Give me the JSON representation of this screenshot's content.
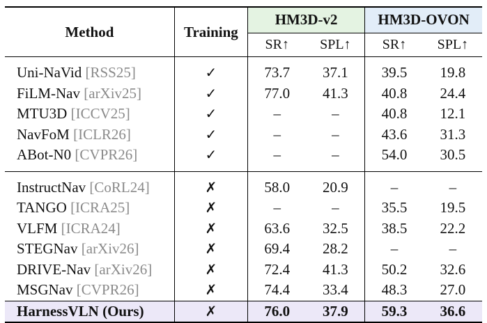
{
  "table": {
    "header": {
      "method": "Method",
      "training": "Training",
      "groups": [
        "HM3D-v2",
        "HM3D-OVON"
      ],
      "metrics": [
        "SR↑",
        "SPL↑",
        "SR↑",
        "SPL↑"
      ]
    },
    "training_rows": [
      {
        "name": "Uni-NaVid",
        "venue": "[RSS25]",
        "training": "✓",
        "v2_sr": "73.7",
        "v2_spl": "37.1",
        "ovon_sr": "39.5",
        "ovon_spl": "19.8"
      },
      {
        "name": "FiLM-Nav",
        "venue": "[arXiv25]",
        "training": "✓",
        "v2_sr": "77.0",
        "v2_spl": "41.3",
        "ovon_sr": "40.8",
        "ovon_spl": "24.4"
      },
      {
        "name": "MTU3D",
        "venue": "[ICCV25]",
        "training": "✓",
        "v2_sr": "–",
        "v2_spl": "–",
        "ovon_sr": "40.8",
        "ovon_spl": "12.1"
      },
      {
        "name": "NavFoM",
        "venue": "[ICLR26]",
        "training": "✓",
        "v2_sr": "–",
        "v2_spl": "–",
        "ovon_sr": "43.6",
        "ovon_spl": "31.3"
      },
      {
        "name": "ABot-N0",
        "venue": "[CVPR26]",
        "training": "✓",
        "v2_sr": "–",
        "v2_spl": "–",
        "ovon_sr": "54.0",
        "ovon_spl": "30.5"
      }
    ],
    "free_rows": [
      {
        "name": "InstructNav",
        "venue": "[CoRL24]",
        "training": "✗",
        "v2_sr": "58.0",
        "v2_spl": "20.9",
        "ovon_sr": "–",
        "ovon_spl": "–"
      },
      {
        "name": "TANGO",
        "venue": "[ICRA25]",
        "training": "✗",
        "v2_sr": "–",
        "v2_spl": "–",
        "ovon_sr": "35.5",
        "ovon_spl": "19.5"
      },
      {
        "name": "VLFM",
        "venue": "[ICRA24]",
        "training": "✗",
        "v2_sr": "63.6",
        "v2_spl": "32.5",
        "ovon_sr": "38.5",
        "ovon_spl": "22.2"
      },
      {
        "name": "STEGNav",
        "venue": "[arXiv26]",
        "training": "✗",
        "v2_sr": "69.4",
        "v2_spl": "28.2",
        "ovon_sr": "–",
        "ovon_spl": "–"
      },
      {
        "name": "DRIVE-Nav",
        "venue": "[arXiv26]",
        "training": "✗",
        "v2_sr": "72.4",
        "v2_spl": "41.3",
        "ovon_sr": "50.2",
        "ovon_spl": "32.6"
      },
      {
        "name": "MSGNav",
        "venue": "[CVPR26]",
        "training": "✗",
        "v2_sr": "74.4",
        "v2_spl": "33.4",
        "ovon_sr": "48.3",
        "ovon_spl": "27.0"
      }
    ],
    "ours_row": {
      "name": "HarnessVLN (Ours)",
      "training": "✗",
      "v2_sr": "76.0",
      "v2_spl": "37.9",
      "ovon_sr": "59.3",
      "ovon_spl": "36.6"
    },
    "colors": {
      "hm3d_v2_header_bg": "#e4f3e2",
      "hm3d_ovon_header_bg": "#e2edf8",
      "ours_row_bg": "#ece8f8",
      "venue_text": "#8a8a8a"
    }
  }
}
